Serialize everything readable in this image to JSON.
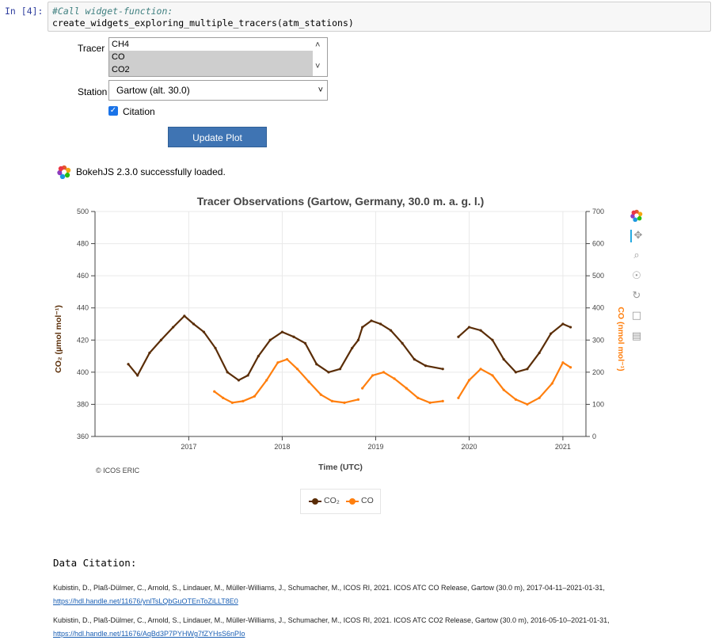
{
  "cell": {
    "prompt": "In [4]:",
    "comment": "#Call widget-function:",
    "code": "create_widgets_exploring_multiple_tracers(atm_stations)"
  },
  "widgets": {
    "tracer_label": "Tracer",
    "tracer_options": [
      "CH4",
      "CO",
      "CO2"
    ],
    "tracer_selected": [
      "CO",
      "CO2"
    ],
    "station_label": "Station",
    "station_value": "Gartow (alt. 30.0)",
    "citation_label": "Citation",
    "citation_checked": true,
    "update_button": "Update Plot"
  },
  "bokeh_message": "BokehJS 2.3.0 successfully loaded.",
  "chart_data": {
    "type": "line",
    "title": "Tracer Observations (Gartow, Germany, 30.0 m. a. g. l.)",
    "xlabel": "Time (UTC)",
    "ylabel_left": "CO₂ (µmol mol⁻¹)",
    "ylabel_right": "CO (nmol mol⁻¹)",
    "x_ticks": [
      "2017",
      "2018",
      "2019",
      "2020",
      "2021"
    ],
    "x_range": [
      "2016-01-01",
      "2021-04-01"
    ],
    "y_left_ticks": [
      360,
      380,
      400,
      420,
      440,
      460,
      480,
      500
    ],
    "y_left_range": [
      360,
      500
    ],
    "y_right_ticks": [
      0,
      100,
      200,
      300,
      400,
      500,
      600,
      700
    ],
    "y_right_range": [
      0,
      700
    ],
    "grid": true,
    "legend_position": "bottom-center",
    "attribution": "© ICOS ERIC",
    "series": [
      {
        "name": "CO₂",
        "color": "#5a2d07",
        "axis": "left",
        "x": [
          "2016-05-10",
          "2016-06-15",
          "2016-08-01",
          "2016-09-15",
          "2016-11-01",
          "2016-12-15",
          "2017-01-20",
          "2017-03-01",
          "2017-04-15",
          "2017-06-01",
          "2017-07-15",
          "2017-08-20",
          "2017-09-30",
          "2017-11-15",
          "2018-01-01",
          "2018-02-15",
          "2018-04-01",
          "2018-05-15",
          "2018-07-01",
          "2018-08-15",
          "2018-10-01",
          "2018-10-25",
          "2018-11-10",
          "2018-12-15",
          "2019-01-20",
          "2019-03-01",
          "2019-04-15",
          "2019-06-01",
          "2019-07-15",
          "2019-09-20",
          "2019-11-20",
          "2020-01-01",
          "2020-02-15",
          "2020-04-01",
          "2020-05-15",
          "2020-07-01",
          "2020-08-15",
          "2020-10-01",
          "2020-11-15",
          "2021-01-01",
          "2021-01-31"
        ],
        "y": [
          405,
          398,
          412,
          420,
          428,
          435,
          430,
          425,
          415,
          400,
          395,
          398,
          410,
          420,
          425,
          422,
          418,
          405,
          400,
          402,
          415,
          420,
          428,
          432,
          430,
          426,
          418,
          408,
          404,
          402,
          422,
          428,
          426,
          420,
          408,
          400,
          402,
          412,
          424,
          430,
          428
        ]
      },
      {
        "name": "CO",
        "color": "#ff7f0e",
        "axis": "right",
        "x": [
          "2017-04-11",
          "2017-05-15",
          "2017-06-20",
          "2017-08-01",
          "2017-09-15",
          "2017-11-01",
          "2017-12-15",
          "2018-01-20",
          "2018-03-01",
          "2018-04-15",
          "2018-06-01",
          "2018-07-15",
          "2018-09-01",
          "2018-10-25",
          "2018-11-10",
          "2018-12-20",
          "2019-02-01",
          "2019-03-15",
          "2019-05-01",
          "2019-06-15",
          "2019-08-01",
          "2019-09-20",
          "2019-11-20",
          "2020-01-01",
          "2020-02-15",
          "2020-04-01",
          "2020-05-15",
          "2020-07-01",
          "2020-08-15",
          "2020-10-01",
          "2020-11-20",
          "2021-01-01",
          "2021-01-31"
        ],
        "y": [
          140,
          120,
          105,
          110,
          125,
          175,
          230,
          240,
          210,
          170,
          130,
          110,
          105,
          115,
          150,
          190,
          200,
          180,
          150,
          120,
          105,
          110,
          120,
          175,
          210,
          190,
          145,
          115,
          100,
          120,
          165,
          230,
          215
        ]
      }
    ]
  },
  "citation": {
    "heading": "Data Citation:",
    "entries": [
      {
        "text": "Kubistin, D., Plaß-Dülmer, C., Arnold, S., Lindauer, M., Müller-Williams, J., Schumacher, M., ICOS RI, 2021. ICOS ATC CO Release, Gartow (30.0 m), 2017-04-11–2021-01-31,",
        "link": "https://hdl.handle.net/11676/ynlTsLQbGuOTEnToZiLLT8E0"
      },
      {
        "text": "Kubistin, D., Plaß-Dülmer, C., Arnold, S., Lindauer, M., Müller-Williams, J., Schumacher, M., ICOS RI, 2021. ICOS ATC CO2 Release, Gartow (30.0 m), 2016-05-10–2021-01-31,",
        "link": "https://hdl.handle.net/11676/AqBd3P7PYHWg7fZYHsS6nPIo"
      }
    ]
  },
  "icons": [
    "bokeh-logo-icon",
    "pan-icon",
    "box-zoom-icon",
    "wheel-zoom-icon",
    "reset-icon",
    "save-icon",
    "hover-icon",
    "checkbox-icon",
    "chevron-up-icon",
    "chevron-down-icon"
  ]
}
